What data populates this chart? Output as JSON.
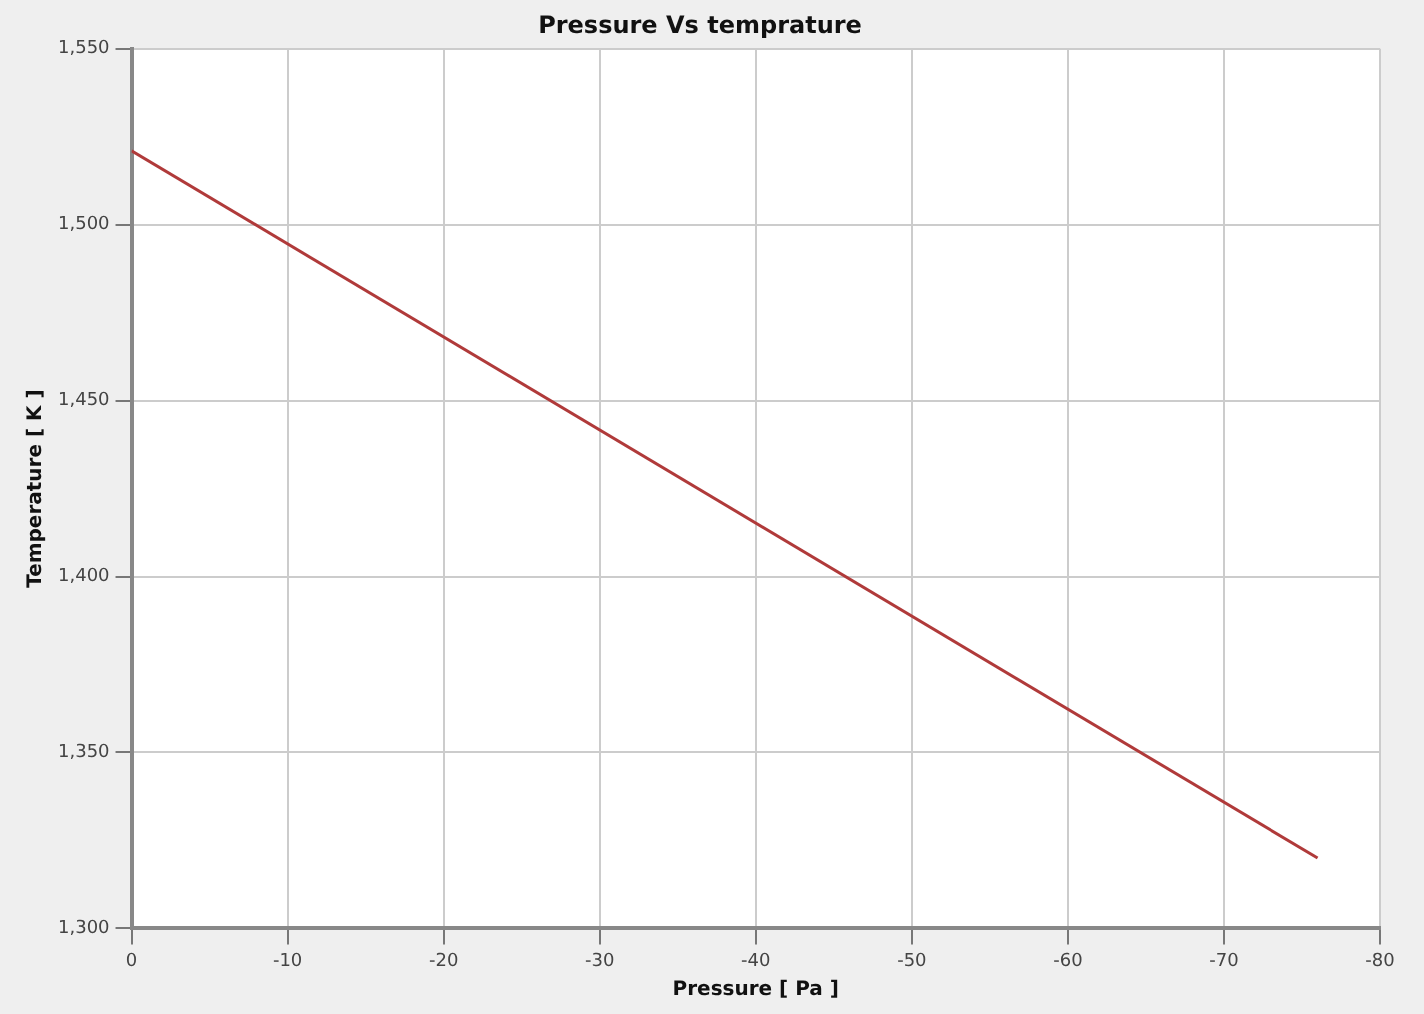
{
  "chart_data": {
    "type": "line",
    "title": "Pressure Vs temprature",
    "xlabel": "Pressure [ Pa ]",
    "ylabel": "Temperature [ K ]",
    "x": [
      0,
      -76
    ],
    "series": [
      {
        "color": "#b03a3a",
        "values": [
          1521,
          1320
        ]
      }
    ],
    "xlim": [
      0,
      -80
    ],
    "xticks": [
      0,
      -10,
      -20,
      -30,
      -40,
      -50,
      -60,
      -70,
      -80
    ],
    "ylim": [
      1300,
      1550
    ],
    "yticks": [
      {
        "value": 1300,
        "label": "1,300"
      },
      {
        "value": 1350,
        "label": "1,350"
      },
      {
        "value": 1400,
        "label": "1,400"
      },
      {
        "value": 1450,
        "label": "1,450"
      },
      {
        "value": 1500,
        "label": "1,500"
      },
      {
        "value": 1550,
        "label": "1,550"
      }
    ],
    "grid": true,
    "legend": false,
    "marker": "none",
    "line_style": "solid"
  }
}
